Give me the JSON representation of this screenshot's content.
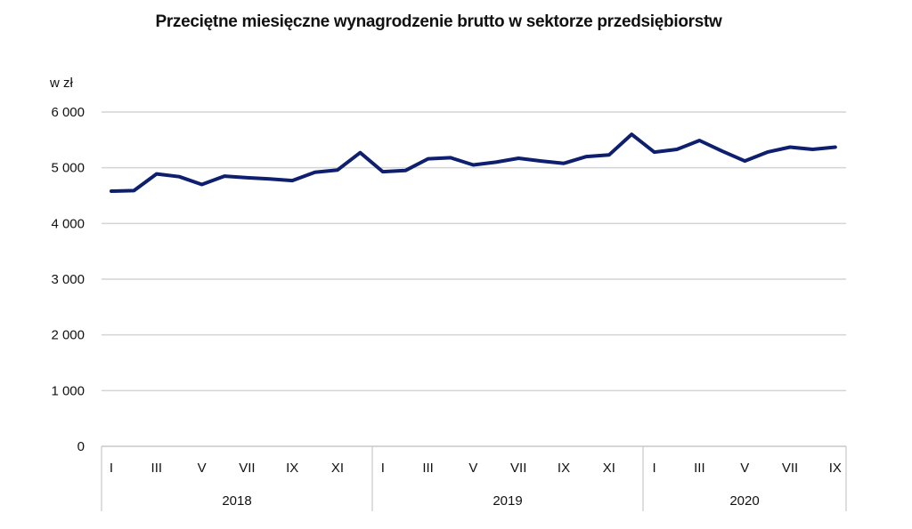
{
  "chart_data": {
    "type": "line",
    "title": "Przeciętne miesięczne wynagrodzenie brutto w sektorze przedsiębiorstw",
    "ylabel": "w zł",
    "ylim": [
      0,
      6000
    ],
    "y_ticks": [
      0,
      1000,
      2000,
      3000,
      4000,
      5000,
      6000
    ],
    "y_tick_labels": [
      "0",
      "1 000",
      "2 000",
      "3 000",
      "4 000",
      "5 000",
      "6 000"
    ],
    "grid": true,
    "color": "#0d1f6e",
    "years": [
      "2018",
      "2019",
      "2020"
    ],
    "x_tick_labels": [
      "I",
      "III",
      "V",
      "VII",
      "IX",
      "XI",
      "I",
      "III",
      "V",
      "VII",
      "IX",
      "XI",
      "I",
      "III",
      "V",
      "VII",
      "IX"
    ],
    "x_tick_indices": [
      0,
      2,
      4,
      6,
      8,
      10,
      12,
      14,
      16,
      18,
      20,
      22,
      24,
      26,
      28,
      30,
      32
    ],
    "series": [
      {
        "values": [
          4580,
          4590,
          4890,
          4840,
          4700,
          4850,
          4820,
          4800,
          4770,
          4920,
          4960,
          5270,
          4930,
          4950,
          5160,
          5180,
          5050,
          5100,
          5170,
          5120,
          5080,
          5200,
          5230,
          5600,
          5280,
          5330,
          5490,
          5300,
          5120,
          5280,
          5370,
          5330,
          5370
        ]
      }
    ]
  }
}
